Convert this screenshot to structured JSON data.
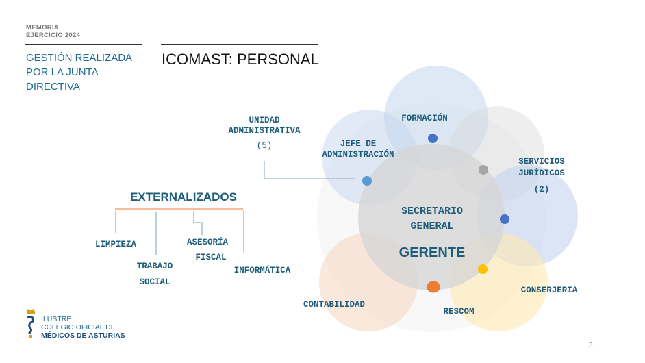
{
  "header": {
    "line1": "MEMORIA",
    "line2": "EJERCICIO 2024"
  },
  "section_title": "GESTIÓN REALIZADA POR LA JUNTA DIRECTIVA",
  "page_title": "ICOMAST: PERSONAL",
  "diagram": {
    "unidad": {
      "line1": "UNIDAD",
      "line2": "ADMINISTRATIVA",
      "count": "(5)"
    },
    "jefe": {
      "line1": "JEFE DE",
      "line2": "ADMINISTRACIÓN"
    },
    "formacion": "FORMACIÓN",
    "servicios": {
      "line1": "SERVICIOS",
      "line2": "JURÍDICOS",
      "count": "(2)"
    },
    "center": {
      "line1": "SECRETARIO",
      "line2": "GENERAL",
      "role": "GERENTE"
    },
    "conserjeria": "CONSERJERIA",
    "rescom": "RESCOM",
    "contabilidad": "CONTABILIDAD",
    "dot_colors": [
      "#4472c4",
      "#a5a5a5",
      "#5b9bd5",
      "#4472c4",
      "#ffc000",
      "#ed7d31"
    ]
  },
  "externalizados": {
    "title": "EXTERNALIZADOS",
    "limpieza": "LIMPIEZA",
    "trabajo": {
      "line1": "TRABAJO",
      "line2": "SOCIAL"
    },
    "asesoria": {
      "line1": "ASESORÍA",
      "line2": "FISCAL"
    },
    "informatica": "INFORMÁTICA"
  },
  "logo": {
    "line1": "ILUSTRE",
    "line2": "COLEGIO OFICIAL DE",
    "line3": "MÉDICOS DE ASTURIAS"
  },
  "page_number": "3"
}
